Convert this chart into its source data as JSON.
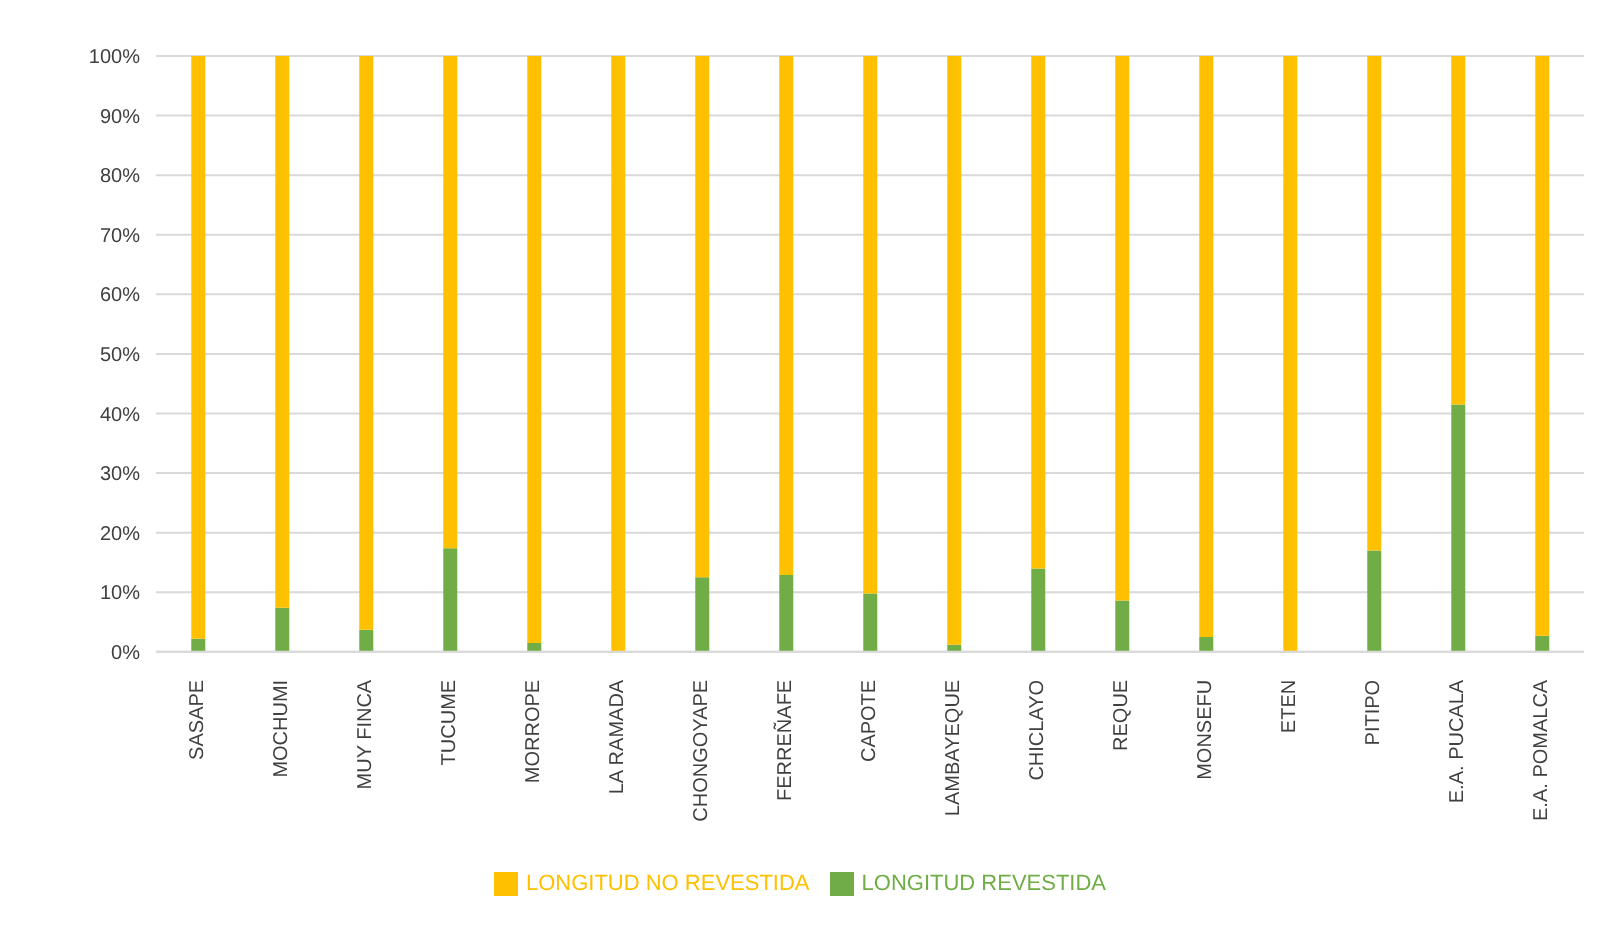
{
  "chart_data": {
    "type": "bar",
    "stacked": true,
    "categories": [
      "SASAPE",
      "MOCHUMI",
      "MUY FINCA",
      "TUCUME",
      "MORROPE",
      "LA RAMADA",
      "CHONGOYAPE",
      "FERREÑAFE",
      "CAPOTE",
      "LAMBAYEQUE",
      "CHICLAYO",
      "REQUE",
      "MONSEFU",
      "ETEN",
      "PITIPO",
      "E.A. PUCALA",
      "E.A. POMALCA"
    ],
    "series": [
      {
        "name": "LONGITUD REVESTIDA",
        "color": "#70ad47",
        "values": [
          2.2,
          7.4,
          3.7,
          17.4,
          1.5,
          0,
          12.5,
          12.9,
          9.8,
          1.2,
          14,
          8.6,
          2.5,
          0,
          17,
          41.5,
          2.7
        ]
      },
      {
        "name": "LONGITUD NO REVESTIDA",
        "color": "#ffc000",
        "values": [
          97.8,
          92.6,
          96.3,
          82.6,
          98.5,
          100,
          87.5,
          87.1,
          90.2,
          98.8,
          86,
          91.4,
          97.5,
          100,
          83,
          58.5,
          97.3
        ]
      }
    ],
    "ylim": [
      0,
      100
    ],
    "yticks": [
      {
        "value": 0,
        "label": "0%"
      },
      {
        "value": 10,
        "label": "10%"
      },
      {
        "value": 20,
        "label": "20%"
      },
      {
        "value": 30,
        "label": "30%"
      },
      {
        "value": 40,
        "label": "40%"
      },
      {
        "value": 50,
        "label": "50%"
      },
      {
        "value": 60,
        "label": "60%"
      },
      {
        "value": 70,
        "label": "70%"
      },
      {
        "value": 80,
        "label": "80%"
      },
      {
        "value": 90,
        "label": "90%"
      },
      {
        "value": 100,
        "label": "100%"
      }
    ],
    "grid": "y",
    "legend": "bottom"
  }
}
